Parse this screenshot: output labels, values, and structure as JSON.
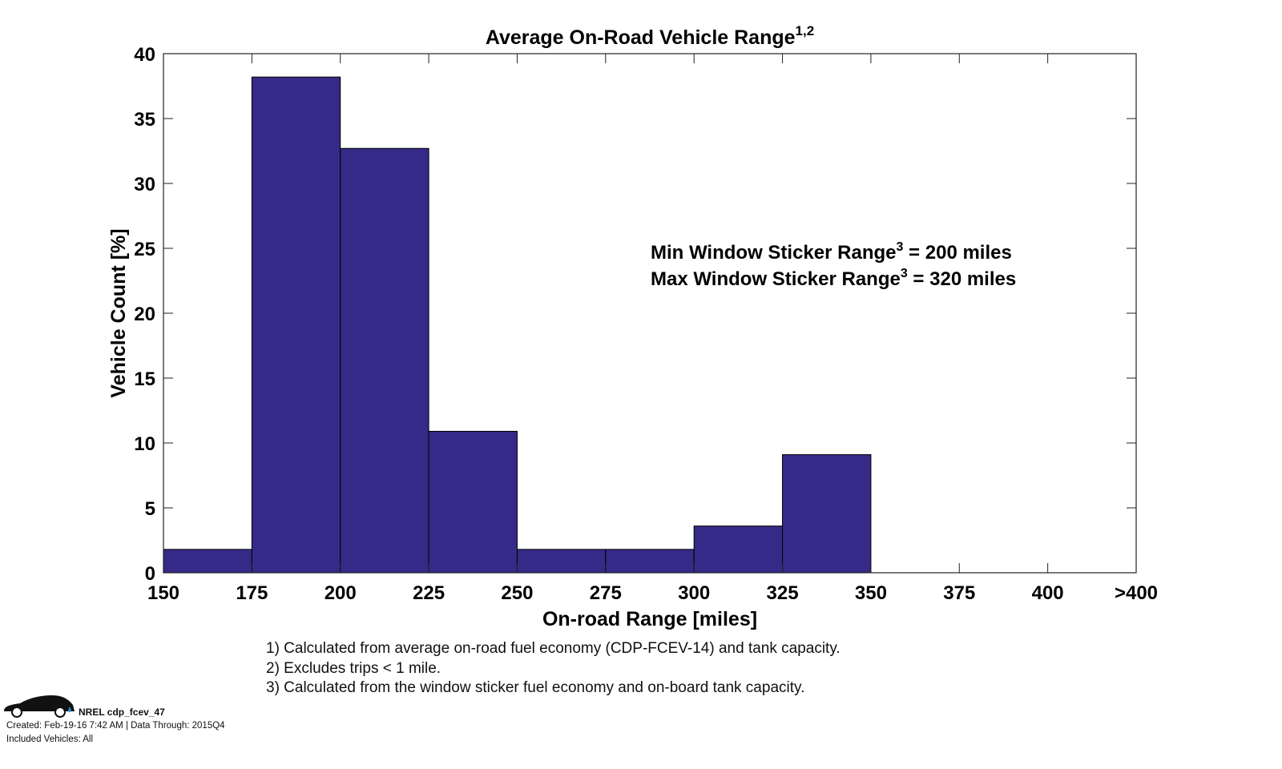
{
  "chart_data": {
    "type": "bar",
    "title": "Average On-Road Vehicle Range",
    "title_superscript": "1,2",
    "xlabel": "On-road Range [miles]",
    "ylabel": "Vehicle Count [%]",
    "bin_edges": [
      150,
      175,
      200,
      225,
      250,
      275,
      300,
      325,
      350,
      375,
      400,
      425
    ],
    "x_tick_labels": [
      "150",
      "175",
      "200",
      "225",
      "250",
      "275",
      "300",
      "325",
      "350",
      "375",
      "400",
      ">400"
    ],
    "values": [
      1.8,
      38.2,
      32.7,
      10.9,
      1.8,
      1.8,
      3.6,
      9.1,
      0,
      0,
      0
    ],
    "ylim": [
      0,
      40
    ],
    "y_ticks": [
      0,
      5,
      10,
      15,
      20,
      25,
      30,
      35,
      40
    ],
    "xlim": [
      150,
      425
    ],
    "grid": false,
    "bar_color": "#352a87",
    "annotations": [
      {
        "text": "Min Window Sticker Range",
        "sup": "3",
        "suffix": " = 200 miles"
      },
      {
        "text": "Max Window Sticker Range",
        "sup": "3",
        "suffix": " = 320 miles"
      }
    ]
  },
  "notes": [
    "1) Calculated from average on-road fuel economy (CDP-FCEV-14) and tank capacity.",
    "2) Excludes trips < 1 mile.",
    "3) Calculated from the window sticker fuel economy and on-board tank capacity."
  ],
  "footer": {
    "id": "NREL cdp_fcev_47",
    "created": "Created: Feb-19-16  7:42 AM | Data Through: 2015Q4",
    "included": "Included Vehicles: All"
  }
}
